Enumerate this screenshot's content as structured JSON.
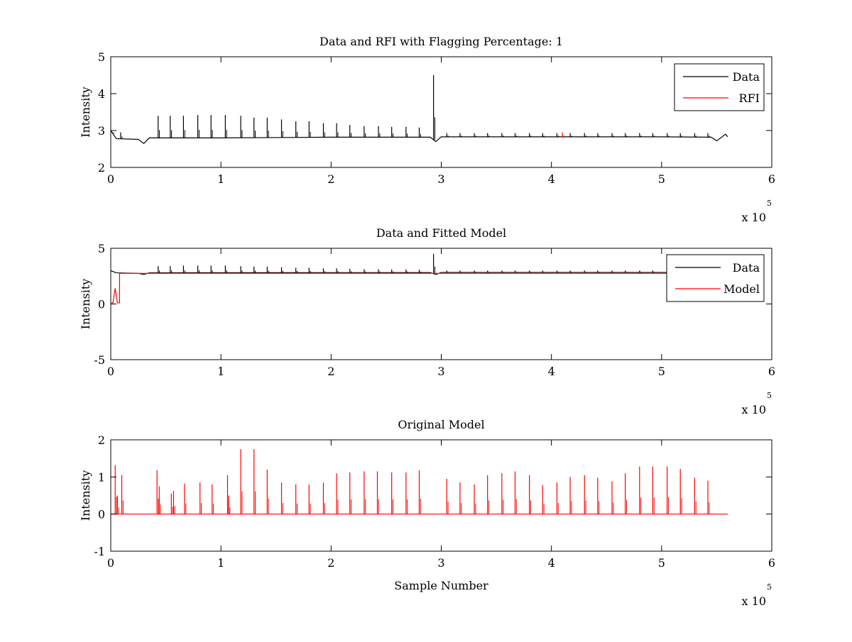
{
  "chart_data": [
    {
      "type": "line",
      "title": "Data and RFI with Flagging Percentage: 1",
      "xlabel": "",
      "ylabel": "Intensity",
      "xlim": [
        0,
        6
      ],
      "ylim": [
        2,
        5
      ],
      "xticks": [
        "0",
        "1",
        "2",
        "3",
        "4",
        "5",
        "6"
      ],
      "yticks": [
        "2",
        "3",
        "4",
        "5"
      ],
      "x_multiplier": {
        "base": "x 10",
        "exponent": "5"
      },
      "legend": {
        "position": "top-right",
        "entries": [
          {
            "label": "Data",
            "color": "#000000"
          },
          {
            "label": "RFI",
            "color": "#ff0000"
          }
        ]
      },
      "series": [
        {
          "name": "Data",
          "color": "#000000",
          "baseline": [
            [
              0,
              3.0
            ],
            [
              0.05,
              2.78
            ],
            [
              0.25,
              2.76
            ],
            [
              0.3,
              2.65
            ],
            [
              0.35,
              2.8
            ],
            [
              1.0,
              2.8
            ],
            [
              2.0,
              2.82
            ],
            [
              2.9,
              2.82
            ],
            [
              2.95,
              2.7
            ],
            [
              3.0,
              2.83
            ],
            [
              4.0,
              2.83
            ],
            [
              5.0,
              2.83
            ],
            [
              5.45,
              2.82
            ],
            [
              5.5,
              2.72
            ],
            [
              5.58,
              2.9
            ],
            [
              5.6,
              2.83
            ]
          ],
          "peaks": [
            [
              0.02,
              2.95
            ],
            [
              0.09,
              2.95
            ],
            [
              0.43,
              3.4
            ],
            [
              0.54,
              3.4
            ],
            [
              0.66,
              3.4
            ],
            [
              0.79,
              3.42
            ],
            [
              0.91,
              3.42
            ],
            [
              1.04,
              3.42
            ],
            [
              1.18,
              3.4
            ],
            [
              1.3,
              3.35
            ],
            [
              1.42,
              3.35
            ],
            [
              1.55,
              3.3
            ],
            [
              1.68,
              3.25
            ],
            [
              1.8,
              3.25
            ],
            [
              1.93,
              3.2
            ],
            [
              2.05,
              3.2
            ],
            [
              2.17,
              3.15
            ],
            [
              2.3,
              3.12
            ],
            [
              2.43,
              3.12
            ],
            [
              2.55,
              3.1
            ],
            [
              2.68,
              3.1
            ],
            [
              2.8,
              3.08
            ],
            [
              2.93,
              4.5
            ],
            [
              3.05,
              2.93
            ],
            [
              3.17,
              2.93
            ],
            [
              3.3,
              2.93
            ],
            [
              3.42,
              2.93
            ],
            [
              3.55,
              2.93
            ],
            [
              3.67,
              2.93
            ],
            [
              3.8,
              2.93
            ],
            [
              3.92,
              2.93
            ],
            [
              4.05,
              2.93
            ],
            [
              4.17,
              2.93
            ],
            [
              4.3,
              2.93
            ],
            [
              4.42,
              2.93
            ],
            [
              4.55,
              2.93
            ],
            [
              4.67,
              2.93
            ],
            [
              4.8,
              2.93
            ],
            [
              4.92,
              2.93
            ],
            [
              5.05,
              2.93
            ],
            [
              5.17,
              2.93
            ],
            [
              5.3,
              2.93
            ],
            [
              5.42,
              2.93
            ]
          ]
        },
        {
          "name": "RFI",
          "color": "#ff0000",
          "baseline": [],
          "peaks": [
            [
              4.1,
              2.95
            ]
          ]
        }
      ]
    },
    {
      "type": "line",
      "title": "Data and Fitted Model",
      "xlabel": "",
      "ylabel": "Intensity",
      "xlim": [
        0,
        6
      ],
      "ylim": [
        -5,
        5
      ],
      "xticks": [
        "0",
        "1",
        "2",
        "3",
        "4",
        "5",
        "6"
      ],
      "yticks": [
        "-5",
        "0",
        "5"
      ],
      "x_multiplier": {
        "base": "x 10",
        "exponent": "5"
      },
      "legend": {
        "position": "top-right",
        "entries": [
          {
            "label": "Data",
            "color": "#000000"
          },
          {
            "label": "Model",
            "color": "#ff0000"
          }
        ]
      },
      "series": [
        {
          "name": "Data",
          "color": "#000000",
          "baseline": [
            [
              0,
              3.0
            ],
            [
              0.05,
              2.8
            ],
            [
              0.25,
              2.75
            ],
            [
              0.3,
              2.65
            ],
            [
              0.35,
              2.8
            ],
            [
              2.9,
              2.82
            ],
            [
              2.95,
              2.65
            ],
            [
              3.0,
              2.83
            ],
            [
              5.1,
              2.83
            ]
          ],
          "peaks": [
            [
              0.43,
              3.4
            ],
            [
              0.54,
              3.4
            ],
            [
              0.66,
              3.45
            ],
            [
              0.79,
              3.45
            ],
            [
              0.91,
              3.45
            ],
            [
              1.04,
              3.45
            ],
            [
              1.18,
              3.4
            ],
            [
              1.3,
              3.35
            ],
            [
              1.42,
              3.35
            ],
            [
              1.55,
              3.3
            ],
            [
              1.68,
              3.25
            ],
            [
              1.8,
              3.25
            ],
            [
              1.93,
              3.2
            ],
            [
              2.05,
              3.2
            ],
            [
              2.17,
              3.15
            ],
            [
              2.3,
              3.12
            ],
            [
              2.43,
              3.12
            ],
            [
              2.55,
              3.1
            ],
            [
              2.68,
              3.1
            ],
            [
              2.8,
              3.08
            ],
            [
              2.93,
              4.5
            ],
            [
              3.05,
              3.0
            ],
            [
              3.17,
              3.0
            ],
            [
              3.3,
              3.0
            ],
            [
              3.42,
              3.0
            ],
            [
              3.55,
              3.0
            ],
            [
              3.67,
              3.0
            ],
            [
              3.8,
              3.0
            ],
            [
              3.92,
              3.0
            ],
            [
              4.05,
              3.0
            ],
            [
              4.17,
              3.0
            ],
            [
              4.3,
              3.0
            ],
            [
              4.42,
              3.0
            ],
            [
              4.55,
              3.0
            ],
            [
              4.67,
              3.0
            ],
            [
              4.8,
              3.0
            ],
            [
              4.92,
              3.0
            ],
            [
              5.05,
              3.0
            ]
          ]
        },
        {
          "name": "Model",
          "color": "#ff0000",
          "baseline": [
            [
              0,
              0.1
            ],
            [
              0.02,
              0.1
            ],
            [
              0.04,
              1.4
            ],
            [
              0.05,
              0.8
            ],
            [
              0.06,
              0.1
            ],
            [
              0.08,
              0.1
            ],
            [
              0.08,
              2.75
            ],
            [
              5.1,
              2.75
            ]
          ],
          "peaks": []
        }
      ]
    },
    {
      "type": "line",
      "title": "Original Model",
      "xlabel": "Sample Number",
      "ylabel": "Intensity",
      "xlim": [
        0,
        6
      ],
      "ylim": [
        -1,
        2
      ],
      "xticks": [
        "0",
        "1",
        "2",
        "3",
        "4",
        "5",
        "6"
      ],
      "yticks": [
        "-1",
        "0",
        "1",
        "2"
      ],
      "x_multiplier": {
        "base": "x 10",
        "exponent": "5"
      },
      "legend": null,
      "series": [
        {
          "name": "",
          "color": "#ff0000",
          "baseline": [
            [
              0,
              0
            ],
            [
              5.6,
              0
            ]
          ],
          "peaks": [
            [
              0.04,
              1.32
            ],
            [
              0.06,
              0.5
            ],
            [
              0.1,
              1.05
            ],
            [
              0.42,
              1.18
            ],
            [
              0.44,
              0.75
            ],
            [
              0.55,
              0.55
            ],
            [
              0.57,
              0.62
            ],
            [
              0.67,
              0.82
            ],
            [
              0.81,
              0.85
            ],
            [
              0.92,
              0.8
            ],
            [
              1.06,
              1.05
            ],
            [
              1.07,
              0.5
            ],
            [
              1.18,
              1.75
            ],
            [
              1.3,
              1.75
            ],
            [
              1.42,
              1.2
            ],
            [
              1.55,
              0.85
            ],
            [
              1.68,
              0.8
            ],
            [
              1.8,
              0.8
            ],
            [
              1.93,
              0.85
            ],
            [
              2.05,
              1.1
            ],
            [
              2.17,
              1.12
            ],
            [
              2.3,
              1.15
            ],
            [
              2.42,
              1.15
            ],
            [
              2.55,
              1.12
            ],
            [
              2.68,
              1.12
            ],
            [
              2.8,
              1.18
            ],
            [
              3.05,
              0.95
            ],
            [
              3.17,
              0.85
            ],
            [
              3.3,
              0.8
            ],
            [
              3.42,
              1.05
            ],
            [
              3.55,
              1.1
            ],
            [
              3.67,
              1.15
            ],
            [
              3.8,
              1.05
            ],
            [
              3.92,
              0.78
            ],
            [
              4.05,
              0.85
            ],
            [
              4.17,
              1.0
            ],
            [
              4.3,
              1.05
            ],
            [
              4.42,
              0.98
            ],
            [
              4.55,
              0.88
            ],
            [
              4.67,
              1.1
            ],
            [
              4.8,
              1.28
            ],
            [
              4.92,
              1.28
            ],
            [
              5.05,
              1.28
            ],
            [
              5.17,
              1.22
            ],
            [
              5.3,
              0.98
            ],
            [
              5.42,
              0.9
            ]
          ]
        }
      ]
    }
  ]
}
